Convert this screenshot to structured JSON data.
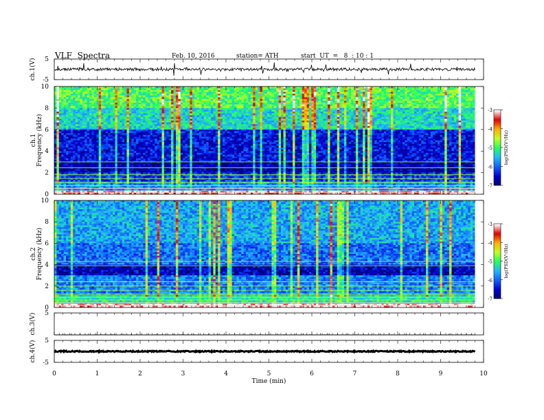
{
  "header": {
    "title": "VLF  Spectra",
    "date": "Feb. 10, 2016",
    "station": "station= ATH",
    "start_ut": "start  UT  =   8  : 10 : 1"
  },
  "chart_data": [
    {
      "type": "line",
      "panel": "ch1-waveform",
      "ylabel": "ch.1(V)",
      "ylim": [
        -5,
        5
      ],
      "y_ticks": [
        "5",
        "-5"
      ],
      "xlim": [
        0,
        10
      ],
      "series": [
        {
          "mean_v": 0,
          "noise_v": 0.7,
          "spikes": "frequent"
        }
      ]
    },
    {
      "type": "heatmap",
      "panel": "ch1-spectrogram",
      "ylabel": "Frequency  (kHz)",
      "ylabel2": "ch.1",
      "ylim": [
        0,
        10
      ],
      "y_ticks": [
        "0",
        "2",
        "4",
        "6",
        "8",
        "10"
      ],
      "xlim": [
        0,
        9.8
      ],
      "bands_khz": [
        {
          "from": 0.0,
          "to": 0.4,
          "level": -3.2
        },
        {
          "from": 0.4,
          "to": 1.2,
          "level": -5.7
        },
        {
          "from": 1.2,
          "to": 2.0,
          "level": -6.2
        },
        {
          "from": 2.0,
          "to": 3.0,
          "level": -6.7
        },
        {
          "from": 3.0,
          "to": 6.0,
          "level": -6.4
        },
        {
          "from": 6.0,
          "to": 8.0,
          "level": -5.3
        },
        {
          "from": 8.0,
          "to": 10.0,
          "level": -4.9
        }
      ],
      "colorbar": {
        "label": "log(PSD(V²/Hz)",
        "range": [
          -7,
          -3
        ],
        "ticks": [
          "-3",
          "-4",
          "-5",
          "-6",
          "-7"
        ]
      }
    },
    {
      "type": "heatmap",
      "panel": "ch2-spectrogram",
      "ylabel": "Frequency  (kHz)",
      "ylabel2": "ch.2",
      "ylim": [
        0,
        10
      ],
      "y_ticks": [
        "0",
        "2",
        "4",
        "6",
        "8",
        "10"
      ],
      "xlim": [
        0,
        9.8
      ],
      "bands_khz": [
        {
          "from": 0.0,
          "to": 0.4,
          "level": -3.0
        },
        {
          "from": 0.4,
          "to": 1.2,
          "level": -5.2
        },
        {
          "from": 1.2,
          "to": 3.0,
          "level": -5.8
        },
        {
          "from": 3.0,
          "to": 4.0,
          "level": -6.6
        },
        {
          "from": 4.0,
          "to": 6.0,
          "level": -5.9
        },
        {
          "from": 6.0,
          "to": 10.0,
          "level": -5.6
        }
      ],
      "colorbar": {
        "label": "log(PSD(V²/Hz)",
        "range": [
          -7,
          -3
        ],
        "ticks": [
          "-3",
          "-4",
          "-5",
          "-6",
          "-7"
        ]
      }
    },
    {
      "type": "line",
      "panel": "ch3-waveform",
      "ylabel": "ch.3(V)",
      "ylim": [
        -5,
        5
      ],
      "y_ticks": [
        "5"
      ],
      "xlim": [
        0,
        10
      ],
      "series": [
        {
          "mean_v": -5,
          "noise_v": 0.1
        }
      ]
    },
    {
      "type": "line",
      "panel": "ch4-waveform",
      "ylabel": "ch.4(V)",
      "ylim": [
        -5,
        5
      ],
      "y_ticks": [
        "5",
        "-5"
      ],
      "xlim": [
        0,
        10
      ],
      "series": [
        {
          "mean_v": 0,
          "noise_v": 0.25
        }
      ]
    }
  ],
  "x_axis": {
    "label": "Time  (min)",
    "ticks": [
      "0",
      "1",
      "2",
      "3",
      "4",
      "5",
      "6",
      "7",
      "8",
      "9",
      "10"
    ],
    "range": [
      0,
      10
    ]
  },
  "colors": {
    "colormap": [
      "#000070",
      "#0000d0",
      "#1060ff",
      "#20b8ff",
      "#20ff60",
      "#c0ff20",
      "#ffb000",
      "#e00000",
      "#ffffff"
    ]
  }
}
